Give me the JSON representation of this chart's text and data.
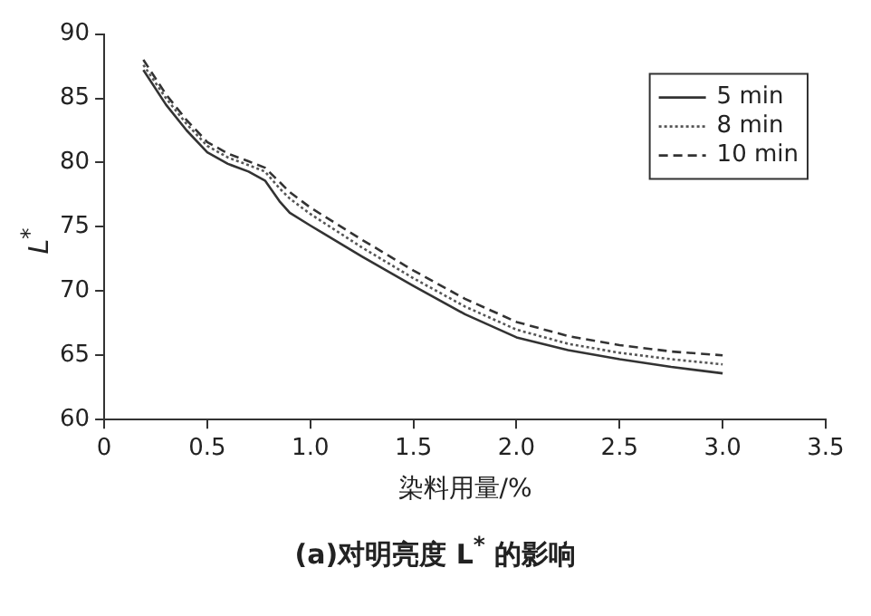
{
  "chart_data": {
    "type": "line",
    "xlabel": "染料用量/%",
    "ylabel": "L$^{*}$",
    "annotations": [
      "(a)对明亮度 L$^{*}$ 的影响"
    ],
    "xlim": [
      0,
      3.5
    ],
    "xticks": [
      {
        "value": 0,
        "label": "0"
      },
      {
        "value": 0.5,
        "label": "0.5"
      },
      {
        "value": 1,
        "label": "1.0"
      },
      {
        "value": 1.5,
        "label": "1.5"
      },
      {
        "value": 2,
        "label": "2.0"
      },
      {
        "value": 2.5,
        "label": "2.5"
      },
      {
        "value": 3,
        "label": "3.0"
      },
      {
        "value": 3.5,
        "label": "3.5"
      }
    ],
    "ylim": [
      60,
      90
    ],
    "yticks": [
      60,
      65,
      70,
      75,
      80,
      85,
      90
    ],
    "grid": false,
    "legend": "top right",
    "marker": "none",
    "series": [
      {
        "name": "5 min",
        "color": "#333333",
        "line_style": "solid",
        "x": [
          0.19,
          0.3,
          0.4,
          0.5,
          0.6,
          0.7,
          0.78,
          0.85,
          0.9,
          1.0,
          1.25,
          1.5,
          1.75,
          2.0,
          2.25,
          2.5,
          2.75,
          3.0
        ],
        "values": [
          87.2,
          84.5,
          82.5,
          80.8,
          79.9,
          79.3,
          78.6,
          77.0,
          76.1,
          75.1,
          72.7,
          70.4,
          68.2,
          66.4,
          65.4,
          64.7,
          64.1,
          63.6
        ]
      },
      {
        "name": "8 min",
        "color": "#555555",
        "line_style": "dotted",
        "x": [
          0.19,
          0.3,
          0.4,
          0.5,
          0.6,
          0.7,
          0.78,
          0.85,
          0.9,
          1.0,
          1.25,
          1.5,
          1.75,
          2.0,
          2.25,
          2.5,
          2.75,
          3.0
        ],
        "values": [
          87.6,
          85.0,
          83.0,
          81.3,
          80.4,
          79.8,
          79.3,
          78.0,
          77.2,
          76.0,
          73.4,
          71.0,
          68.8,
          67.0,
          65.9,
          65.2,
          64.7,
          64.3
        ]
      },
      {
        "name": "10 min",
        "color": "#333333",
        "line_style": "dashed",
        "x": [
          0.19,
          0.3,
          0.4,
          0.5,
          0.6,
          0.7,
          0.78,
          0.85,
          0.9,
          1.0,
          1.25,
          1.5,
          1.75,
          2.0,
          2.25,
          2.5,
          2.75,
          3.0
        ],
        "values": [
          88.0,
          85.3,
          83.3,
          81.6,
          80.7,
          80.1,
          79.6,
          78.5,
          77.7,
          76.5,
          74.0,
          71.6,
          69.4,
          67.6,
          66.5,
          65.8,
          65.3,
          65.0
        ]
      }
    ]
  }
}
